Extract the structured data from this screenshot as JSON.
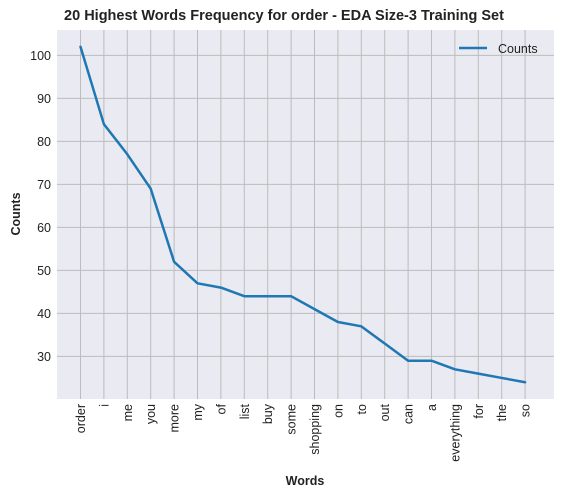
{
  "chart_data": {
    "type": "line",
    "title": "20 Highest Words Frequency for order - EDA Size-3 Training Set",
    "xlabel": "Words",
    "ylabel": "Counts",
    "categories": [
      "order",
      "i",
      "me",
      "you",
      "more",
      "my",
      "of",
      "list",
      "buy",
      "some",
      "shopping",
      "on",
      "to",
      "out",
      "can",
      "a",
      "everything",
      "for",
      "the",
      "so"
    ],
    "series": [
      {
        "name": "Counts",
        "color": "#1f77b4",
        "values": [
          102,
          84,
          77,
          69,
          52,
          47,
          46,
          44,
          44,
          44,
          41,
          38,
          37,
          33,
          29,
          29,
          27,
          26,
          25,
          24
        ]
      }
    ],
    "yticks": [
      30,
      40,
      50,
      60,
      70,
      80,
      90,
      100
    ],
    "ylim": [
      20.1,
      105.9
    ],
    "grid": true,
    "legend_position": "top-right",
    "colors": {
      "plot_background": "#eaeaf2",
      "grid": "#bcbcbc",
      "line": "#1f77b4"
    }
  }
}
